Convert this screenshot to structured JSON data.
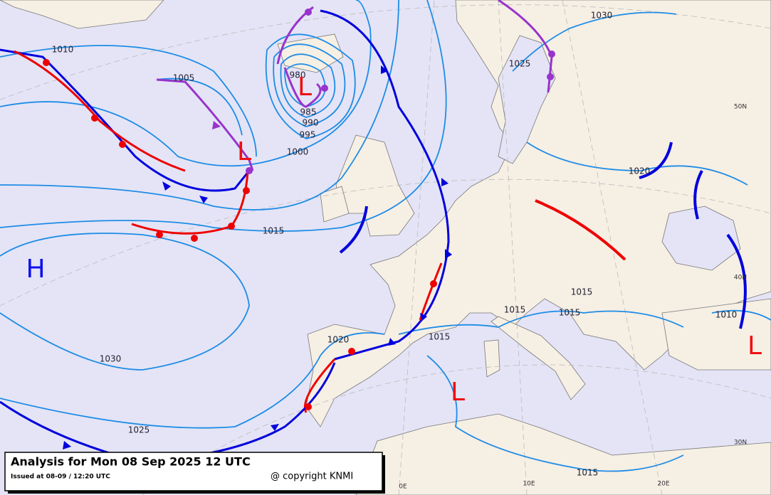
{
  "isobar_labels": [
    "1010",
    "1005",
    "980",
    "985",
    "990",
    "995",
    "1000",
    "1015",
    "1030",
    "1025",
    "1020",
    "1015",
    "1015",
    "1015",
    "1015",
    "1010",
    "1020",
    "1025",
    "1030",
    "1015"
  ],
  "pressure_centers": [
    "H",
    "L",
    "L",
    "L",
    "L"
  ],
  "graticule_labels": [
    "50N",
    "40N",
    "30N",
    "0E",
    "10E",
    "20E"
  ],
  "caption": {
    "title": "Analysis for Mon 08 Sep 2025 12 UTC",
    "issued": "Issued at 08-09 / 12:20 UTC",
    "copyright": "@ copyright KNMI"
  }
}
